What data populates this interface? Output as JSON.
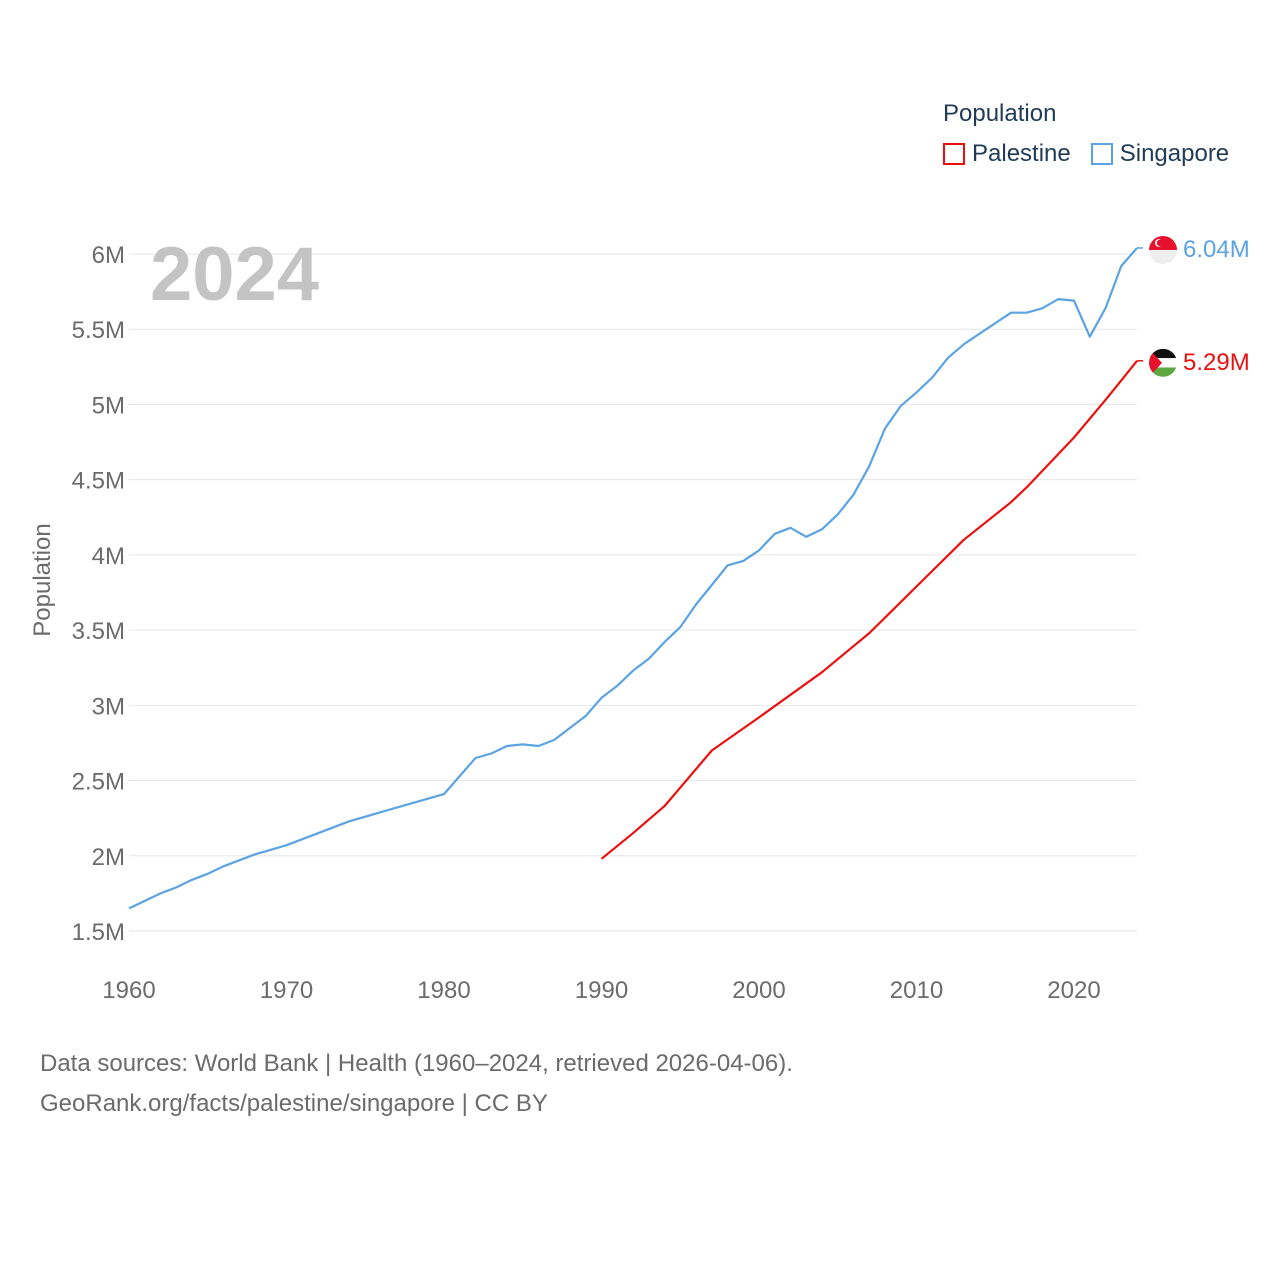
{
  "chart_data": {
    "type": "line",
    "year_label": "2024",
    "ylabel": "Population",
    "xlim": [
      1960,
      2024
    ],
    "ylim": [
      1500000,
      6000000
    ],
    "x_ticks": [
      1960,
      1970,
      1980,
      1990,
      2000,
      2010,
      2020
    ],
    "y_ticks": [
      {
        "value": 1500000,
        "label": "1.5M"
      },
      {
        "value": 2000000,
        "label": "2M"
      },
      {
        "value": 2500000,
        "label": "2.5M"
      },
      {
        "value": 3000000,
        "label": "3M"
      },
      {
        "value": 3500000,
        "label": "3.5M"
      },
      {
        "value": 4000000,
        "label": "4M"
      },
      {
        "value": 4500000,
        "label": "4.5M"
      },
      {
        "value": 5000000,
        "label": "5M"
      },
      {
        "value": 5500000,
        "label": "5.5M"
      },
      {
        "value": 6000000,
        "label": "6M"
      }
    ],
    "legend_title": "Population",
    "series": [
      {
        "name": "Palestine",
        "color": "#e8110f",
        "end_label": "5.29M",
        "flag": "palestine-flag",
        "points": [
          [
            1990,
            1980000
          ],
          [
            1992,
            2150000
          ],
          [
            1994,
            2330000
          ],
          [
            1997,
            2700000
          ],
          [
            2000,
            2920000
          ],
          [
            2004,
            3220000
          ],
          [
            2007,
            3480000
          ],
          [
            2010,
            3790000
          ],
          [
            2013,
            4100000
          ],
          [
            2016,
            4350000
          ],
          [
            2017,
            4450000
          ],
          [
            2020,
            4780000
          ],
          [
            2022,
            5030000
          ],
          [
            2023,
            5160000
          ],
          [
            2024,
            5290000
          ]
        ]
      },
      {
        "name": "Singapore",
        "color": "#5ba3e3",
        "end_label": "6.04M",
        "flag": "singapore-flag",
        "points": [
          [
            1960,
            1650000
          ],
          [
            1961,
            1700000
          ],
          [
            1962,
            1750000
          ],
          [
            1963,
            1790000
          ],
          [
            1964,
            1840000
          ],
          [
            1965,
            1880000
          ],
          [
            1966,
            1930000
          ],
          [
            1967,
            1970000
          ],
          [
            1968,
            2010000
          ],
          [
            1969,
            2040000
          ],
          [
            1970,
            2070000
          ],
          [
            1971,
            2110000
          ],
          [
            1972,
            2150000
          ],
          [
            1973,
            2190000
          ],
          [
            1974,
            2230000
          ],
          [
            1975,
            2260000
          ],
          [
            1976,
            2290000
          ],
          [
            1977,
            2320000
          ],
          [
            1978,
            2350000
          ],
          [
            1979,
            2380000
          ],
          [
            1980,
            2410000
          ],
          [
            1981,
            2530000
          ],
          [
            1982,
            2650000
          ],
          [
            1983,
            2680000
          ],
          [
            1984,
            2730000
          ],
          [
            1985,
            2740000
          ],
          [
            1986,
            2730000
          ],
          [
            1987,
            2770000
          ],
          [
            1988,
            2850000
          ],
          [
            1989,
            2930000
          ],
          [
            1990,
            3050000
          ],
          [
            1991,
            3130000
          ],
          [
            1992,
            3230000
          ],
          [
            1993,
            3310000
          ],
          [
            1994,
            3420000
          ],
          [
            1995,
            3520000
          ],
          [
            1996,
            3670000
          ],
          [
            1997,
            3800000
          ],
          [
            1998,
            3930000
          ],
          [
            1999,
            3960000
          ],
          [
            2000,
            4030000
          ],
          [
            2001,
            4140000
          ],
          [
            2002,
            4180000
          ],
          [
            2003,
            4120000
          ],
          [
            2004,
            4170000
          ],
          [
            2005,
            4270000
          ],
          [
            2006,
            4400000
          ],
          [
            2007,
            4590000
          ],
          [
            2008,
            4840000
          ],
          [
            2009,
            4990000
          ],
          [
            2010,
            5080000
          ],
          [
            2011,
            5180000
          ],
          [
            2012,
            5310000
          ],
          [
            2013,
            5400000
          ],
          [
            2014,
            5470000
          ],
          [
            2015,
            5540000
          ],
          [
            2016,
            5610000
          ],
          [
            2017,
            5610000
          ],
          [
            2018,
            5640000
          ],
          [
            2019,
            5700000
          ],
          [
            2020,
            5690000
          ],
          [
            2021,
            5450000
          ],
          [
            2022,
            5640000
          ],
          [
            2023,
            5920000
          ],
          [
            2024,
            6040000
          ]
        ]
      }
    ]
  },
  "footer": {
    "line1": "Data sources: World Bank | Health (1960–2024, retrieved 2026-04-06).",
    "line2": "GeoRank.org/facts/palestine/singapore | CC BY"
  }
}
